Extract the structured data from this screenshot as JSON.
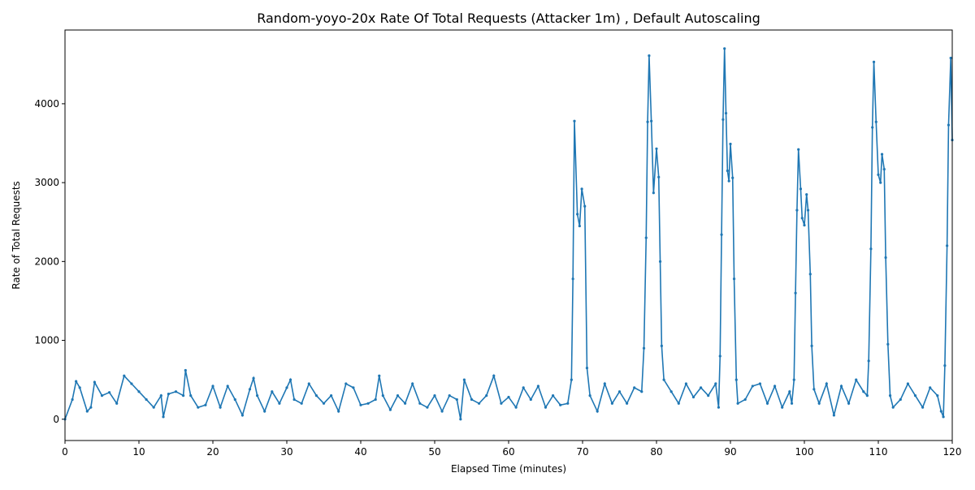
{
  "chart_data": {
    "type": "line",
    "title": "Random-yoyo-20x Rate Of Total Requests (Attacker 1m) , Default Autoscaling",
    "x_label": "Elapsed Time (minutes)",
    "y_label": "Rate of Total Requests",
    "xlim": [
      0,
      120
    ],
    "ylim": [
      -270,
      4935
    ],
    "xticks": [
      0,
      10,
      20,
      30,
      40,
      50,
      60,
      70,
      80,
      90,
      100,
      110,
      120
    ],
    "yticks": [
      0,
      1000,
      2000,
      3000,
      4000
    ],
    "series": [
      {
        "name": "Rate of Total Requests",
        "color": "#1f77b4",
        "x": [
          0,
          1,
          1.5,
          2,
          3,
          3.5,
          4,
          5,
          6,
          7,
          8,
          9,
          10,
          11,
          12,
          13,
          13.3,
          14,
          15,
          16,
          16.3,
          17,
          18,
          19,
          20,
          21,
          22,
          23,
          24,
          25,
          25.5,
          26,
          27,
          28,
          29,
          30,
          30.5,
          31,
          32,
          33,
          34,
          35,
          36,
          37,
          38,
          39,
          40,
          41,
          42,
          42.5,
          43,
          44,
          45,
          46,
          47,
          48,
          49,
          50,
          51,
          52,
          53,
          53.5,
          54,
          55,
          56,
          57,
          58,
          59,
          60,
          61,
          62,
          63,
          64,
          65,
          66,
          67,
          68,
          68.5,
          68.7,
          68.9,
          69.3,
          69.6,
          69.9,
          70.3,
          70.6,
          71,
          72,
          73,
          74,
          75,
          76,
          77,
          78,
          78.3,
          78.6,
          78.8,
          79,
          79.3,
          79.6,
          80,
          80.3,
          80.5,
          80.7,
          81,
          82,
          83,
          84,
          85,
          86,
          87,
          88,
          88.4,
          88.6,
          88.8,
          89,
          89.2,
          89.4,
          89.6,
          89.8,
          90,
          90.3,
          90.5,
          90.8,
          91,
          92,
          93,
          94,
          95,
          96,
          97,
          98,
          98.3,
          98.6,
          98.8,
          99,
          99.2,
          99.5,
          99.7,
          100,
          100.3,
          100.5,
          100.8,
          101,
          101.3,
          102,
          103,
          104,
          105,
          106,
          107,
          108,
          108.5,
          108.7,
          109,
          109.2,
          109.4,
          109.7,
          110,
          110.3,
          110.5,
          110.8,
          111,
          111.3,
          111.6,
          112,
          113,
          114,
          115,
          116,
          117,
          118,
          118.5,
          118.8,
          119,
          119.3,
          119.5,
          119.8,
          120
        ],
        "values": [
          0,
          250,
          480,
          400,
          100,
          150,
          470,
          300,
          340,
          200,
          550,
          450,
          350,
          250,
          150,
          300,
          30,
          320,
          350,
          300,
          620,
          300,
          150,
          180,
          420,
          150,
          420,
          250,
          50,
          380,
          520,
          300,
          100,
          350,
          200,
          400,
          500,
          250,
          200,
          450,
          300,
          200,
          300,
          100,
          450,
          400,
          180,
          200,
          250,
          550,
          300,
          120,
          300,
          200,
          450,
          200,
          150,
          300,
          100,
          300,
          250,
          0,
          500,
          250,
          200,
          300,
          550,
          200,
          280,
          150,
          400,
          250,
          420,
          150,
          300,
          180,
          200,
          500,
          1780,
          3780,
          2600,
          2450,
          2920,
          2700,
          650,
          300,
          100,
          450,
          200,
          350,
          200,
          400,
          350,
          900,
          2300,
          3770,
          4610,
          3780,
          2870,
          3430,
          3070,
          2000,
          930,
          500,
          350,
          200,
          450,
          280,
          400,
          300,
          450,
          150,
          800,
          2340,
          3800,
          4700,
          3880,
          3150,
          3020,
          3490,
          3060,
          1780,
          500,
          200,
          250,
          420,
          450,
          200,
          420,
          150,
          350,
          200,
          500,
          1600,
          2650,
          3420,
          2920,
          2550,
          2460,
          2850,
          2650,
          1840,
          930,
          380,
          200,
          450,
          50,
          420,
          200,
          500,
          350,
          300,
          740,
          2160,
          3700,
          4530,
          3770,
          3100,
          3000,
          3360,
          3170,
          2050,
          950,
          300,
          150,
          250,
          450,
          300,
          150,
          400,
          300,
          100,
          30,
          680,
          2200,
          3730,
          4580,
          3540
        ]
      }
    ]
  }
}
